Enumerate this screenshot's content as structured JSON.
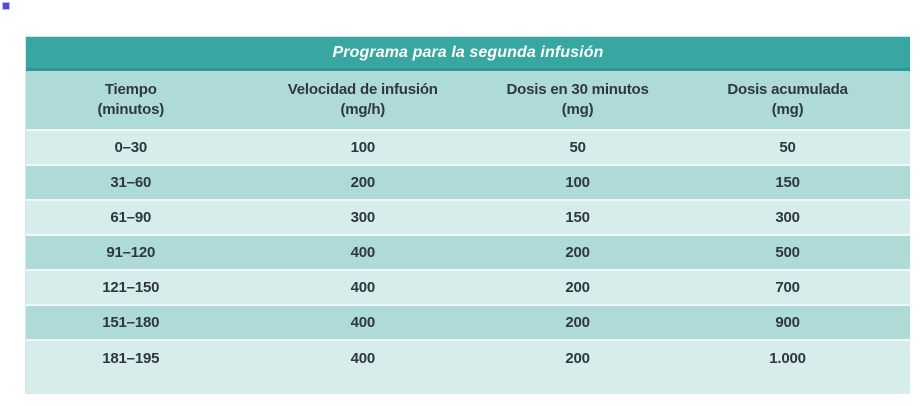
{
  "page": {
    "bullet_marker": "blue-square-dot"
  },
  "table": {
    "title": "Programa para la segunda infusión",
    "columns": [
      {
        "line1": "Tiempo",
        "line2": "(minutos)"
      },
      {
        "line1": "Velocidad de infusión",
        "line2": "(mg/h)"
      },
      {
        "line1": "Dosis en 30 minutos",
        "line2": "(mg)"
      },
      {
        "line1": "Dosis acumulada",
        "line2": "(mg)"
      }
    ],
    "rows": [
      [
        "0–30",
        "100",
        "50",
        "50"
      ],
      [
        "31–60",
        "200",
        "100",
        "150"
      ],
      [
        "61–90",
        "300",
        "150",
        "300"
      ],
      [
        "91–120",
        "400",
        "200",
        "500"
      ],
      [
        "121–150",
        "400",
        "200",
        "700"
      ],
      [
        "151–180",
        "400",
        "200",
        "900"
      ],
      [
        "181–195",
        "400",
        "200",
        "1.000"
      ]
    ],
    "colors": {
      "header_bar": "#38a7a2",
      "header_bar_border": "#2e9792",
      "row_light": "#d6edeb",
      "row_dark": "#aedad7",
      "text": "#2f3743",
      "title_text": "#ffffff"
    }
  },
  "chart_data": {
    "type": "table",
    "title": "Programa para la segunda infusión",
    "columns": [
      "Tiempo (minutos)",
      "Velocidad de infusión (mg/h)",
      "Dosis en 30 minutos (mg)",
      "Dosis acumulada (mg)"
    ],
    "rows": [
      [
        "0–30",
        100,
        50,
        50
      ],
      [
        "31–60",
        200,
        100,
        150
      ],
      [
        "61–90",
        300,
        150,
        300
      ],
      [
        "91–120",
        400,
        200,
        500
      ],
      [
        "121–150",
        400,
        200,
        700
      ],
      [
        "151–180",
        400,
        200,
        900
      ],
      [
        "181–195",
        400,
        200,
        1000
      ]
    ]
  }
}
